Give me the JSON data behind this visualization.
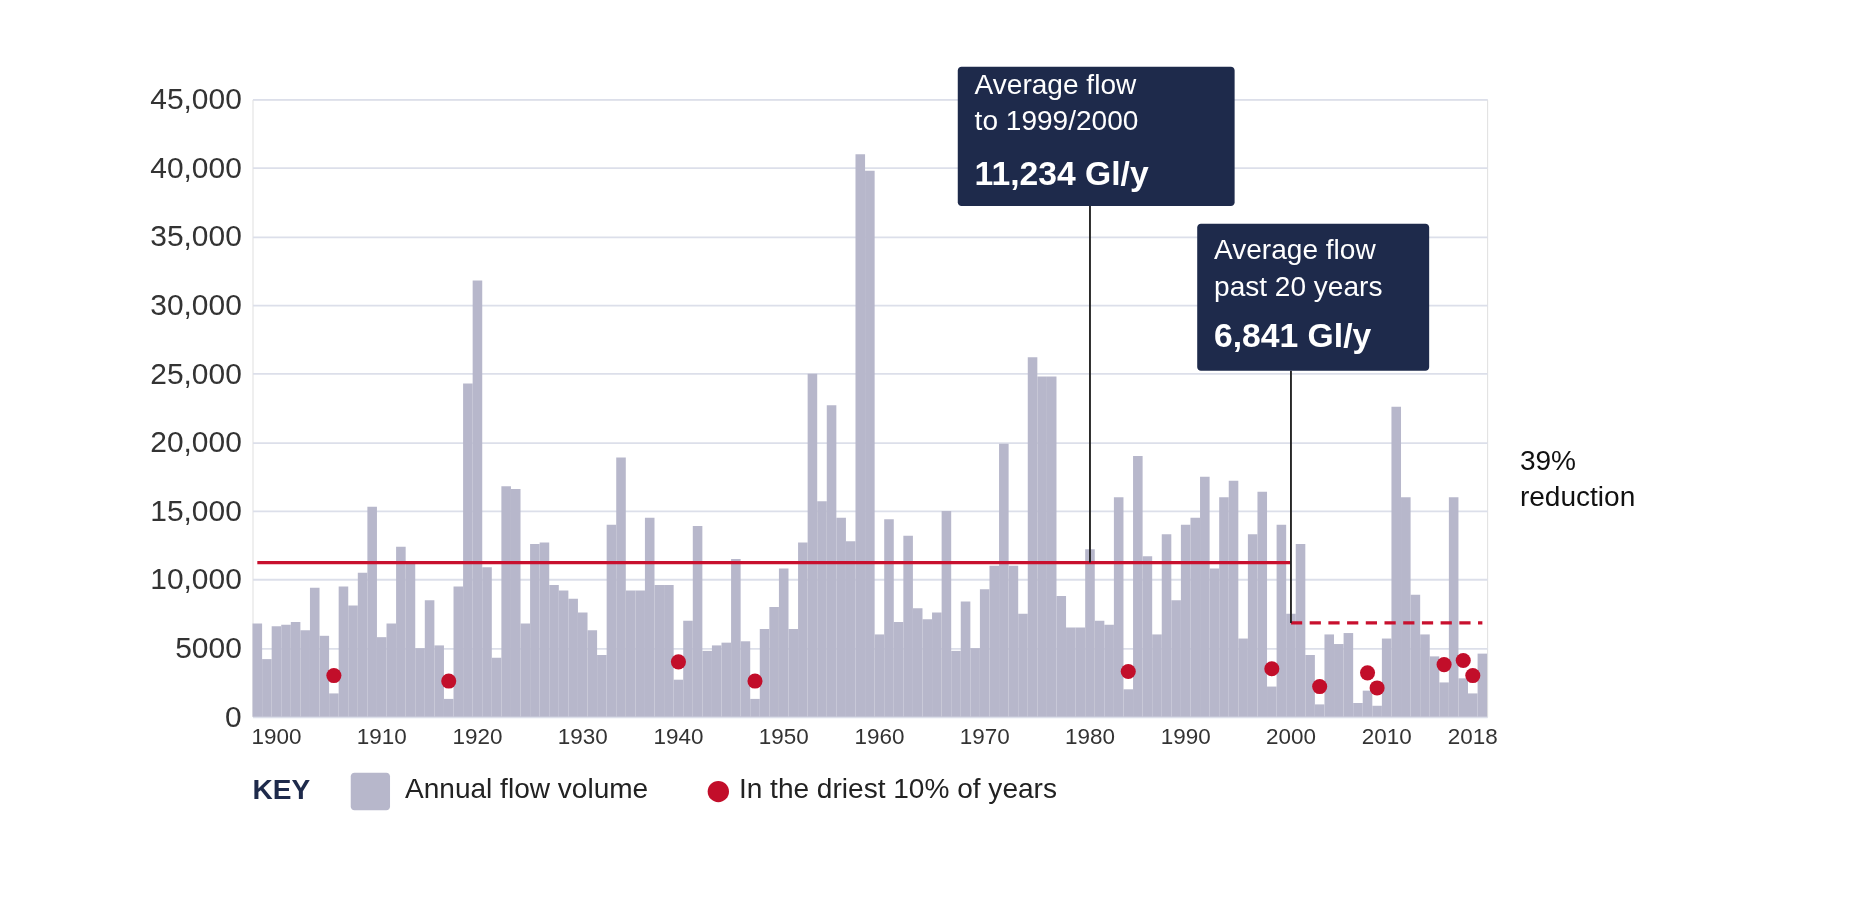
{
  "chart_data": {
    "type": "bar",
    "categories": [
      null,
      null,
      "1900",
      null,
      null,
      null,
      null,
      null,
      null,
      null,
      null,
      null,
      null,
      "1910",
      null,
      null,
      null,
      null,
      null,
      null,
      null,
      null,
      null,
      "1920",
      null,
      null,
      null,
      null,
      null,
      null,
      null,
      null,
      null,
      null,
      "1930",
      null,
      null,
      null,
      null,
      null,
      null,
      null,
      null,
      null,
      "1940",
      null,
      null,
      null,
      null,
      null,
      null,
      null,
      null,
      null,
      null,
      "1950",
      null,
      null,
      null,
      null,
      null,
      null,
      null,
      null,
      null,
      "1960",
      null,
      null,
      null,
      null,
      null,
      null,
      null,
      null,
      null,
      null,
      "1970",
      null,
      null,
      null,
      null,
      null,
      null,
      null,
      null,
      null,
      null,
      "1980",
      null,
      null,
      null,
      null,
      null,
      null,
      null,
      null,
      null,
      "1990",
      null,
      null,
      null,
      null,
      null,
      null,
      null,
      null,
      null,
      null,
      "2000",
      null,
      null,
      null,
      null,
      null,
      null,
      null,
      null,
      null,
      "2010",
      null,
      null,
      null,
      null,
      null,
      null,
      null,
      null,
      "2018",
      null
    ],
    "series": [
      {
        "name": "Annual flow volume",
        "color": "#b7b7cb",
        "values": [
          6800,
          4200,
          6600,
          6700,
          6900,
          6300,
          9400,
          5900,
          1700,
          9500,
          8100,
          10500,
          15300,
          5800,
          6800,
          12400,
          11200,
          5000,
          8500,
          5200,
          1300,
          9500,
          24300,
          31800,
          10900,
          4300,
          16800,
          16600,
          6800,
          12600,
          12700,
          9600,
          9200,
          8600,
          7600,
          6300,
          4500,
          14000,
          18900,
          9200,
          9200,
          14500,
          9600,
          9600,
          2700,
          7000,
          13900,
          4800,
          5200,
          5400,
          11500,
          5500,
          1300,
          6400,
          8000,
          10800,
          6400,
          12700,
          25000,
          15700,
          22700,
          14500,
          12800,
          41000,
          39800,
          6000,
          14400,
          6900,
          13200,
          7900,
          7100,
          7600,
          15000,
          4800,
          8400,
          5000,
          9300,
          11000,
          19900,
          11000,
          7500,
          26200,
          24800,
          24800,
          8800,
          6500,
          6500,
          12200,
          7000,
          6700,
          16000,
          2000,
          19000,
          11700,
          6000,
          13300,
          8500,
          14000,
          14500,
          17500,
          10800,
          16000,
          17200,
          5700,
          13300,
          16400,
          2200,
          14000,
          7500,
          12600,
          4500,
          900,
          6000,
          5300,
          6100,
          1000,
          1900,
          800,
          5700,
          22600,
          16000,
          8900,
          6000,
          4400,
          2500,
          16000,
          2800,
          1700,
          4600
        ]
      },
      {
        "type": "line",
        "line_style": "solid",
        "color": "#c8102e",
        "values": [
          11234,
          11234,
          11234,
          11234,
          11234,
          11234,
          11234,
          11234,
          11234,
          11234,
          11234,
          11234,
          11234,
          11234,
          11234,
          11234,
          11234,
          11234,
          11234,
          11234,
          11234,
          11234,
          11234,
          11234,
          11234,
          11234,
          11234,
          11234,
          11234,
          11234,
          11234,
          11234,
          11234,
          11234,
          11234,
          11234,
          11234,
          11234,
          11234,
          11234,
          11234,
          11234,
          11234,
          11234,
          11234,
          11234,
          11234,
          11234,
          11234,
          11234,
          11234,
          11234,
          11234,
          11234,
          11234,
          11234,
          11234,
          11234,
          11234,
          11234,
          11234,
          11234,
          11234,
          11234,
          11234,
          11234,
          11234,
          11234,
          11234,
          11234,
          11234,
          11234,
          11234,
          11234,
          11234,
          11234,
          11234,
          11234,
          11234,
          11234,
          11234,
          11234,
          11234,
          11234,
          11234,
          11234,
          11234,
          11234,
          11234,
          11234,
          11234,
          11234,
          11234,
          11234,
          11234,
          11234,
          11234,
          11234,
          11234,
          11234,
          11234,
          11234,
          11234,
          11234,
          11234,
          11234,
          11234,
          11234,
          11234,
          null,
          null,
          null,
          null,
          null,
          null,
          null,
          null,
          null,
          null,
          null,
          null,
          null,
          null,
          null,
          null,
          null,
          null,
          null,
          null
        ]
      },
      {
        "type": "line",
        "line_style": "dashed",
        "color": "#c8102e",
        "values": [
          null,
          null,
          null,
          null,
          null,
          null,
          null,
          null,
          null,
          null,
          null,
          null,
          null,
          null,
          null,
          null,
          null,
          null,
          null,
          null,
          null,
          null,
          null,
          null,
          null,
          null,
          null,
          null,
          null,
          null,
          null,
          null,
          null,
          null,
          null,
          null,
          null,
          null,
          null,
          null,
          null,
          null,
          null,
          null,
          null,
          null,
          null,
          null,
          null,
          null,
          null,
          null,
          null,
          null,
          null,
          null,
          null,
          null,
          null,
          null,
          null,
          null,
          null,
          null,
          null,
          null,
          null,
          null,
          null,
          null,
          null,
          null,
          null,
          null,
          null,
          null,
          null,
          null,
          null,
          null,
          null,
          null,
          null,
          null,
          null,
          null,
          null,
          null,
          null,
          null,
          null,
          null,
          null,
          null,
          null,
          null,
          null,
          null,
          null,
          null,
          null,
          null,
          null,
          null,
          null,
          null,
          null,
          null,
          6841,
          6841,
          6841,
          6841,
          6841,
          6841,
          6841,
          6841,
          6841,
          6841,
          6841,
          6841,
          6841,
          6841,
          6841,
          6841,
          6841,
          6841,
          6841,
          6841,
          6841
        ]
      },
      {
        "name": "In the driest 10% of years",
        "type": "scatter",
        "marker": "circle",
        "color": "#c20e2a",
        "values": [
          null,
          null,
          null,
          null,
          null,
          null,
          null,
          null,
          3000,
          null,
          null,
          null,
          null,
          null,
          null,
          null,
          null,
          null,
          null,
          null,
          2600,
          null,
          null,
          null,
          null,
          null,
          null,
          null,
          null,
          null,
          null,
          null,
          null,
          null,
          null,
          null,
          null,
          null,
          null,
          null,
          null,
          null,
          null,
          null,
          4000,
          null,
          null,
          null,
          null,
          null,
          null,
          null,
          2600,
          null,
          null,
          null,
          null,
          null,
          null,
          null,
          null,
          null,
          null,
          null,
          null,
          null,
          null,
          null,
          null,
          null,
          null,
          null,
          null,
          null,
          null,
          null,
          null,
          null,
          null,
          null,
          null,
          null,
          null,
          null,
          null,
          null,
          null,
          null,
          null,
          null,
          null,
          3300,
          null,
          null,
          null,
          null,
          null,
          null,
          null,
          null,
          null,
          null,
          null,
          null,
          null,
          null,
          3500,
          null,
          null,
          null,
          null,
          2200,
          null,
          null,
          null,
          null,
          3200,
          2100,
          null,
          null,
          null,
          null,
          null,
          null,
          3800,
          null,
          4100,
          3000,
          null
        ]
      }
    ],
    "ylim": [
      0,
      45000
    ],
    "yticks": [
      {
        "value": 0,
        "label": "0"
      },
      {
        "value": 5000,
        "label": "5000"
      },
      {
        "value": 10000,
        "label": "10,000"
      },
      {
        "value": 15000,
        "label": "15,000"
      },
      {
        "value": 20000,
        "label": "20,000"
      },
      {
        "value": 25000,
        "label": "25,000"
      },
      {
        "value": 30000,
        "label": "30,000"
      },
      {
        "value": 35000,
        "label": "35,000"
      },
      {
        "value": 40000,
        "label": "40,000"
      },
      {
        "value": 45000,
        "label": "45,000"
      }
    ],
    "grid": "y",
    "legend": "bottom",
    "legend_title": "KEY",
    "annotations": [
      "Average flow\nto 1999/2000",
      {
        "text": "11,234 Gl/y",
        "x": "1980",
        "y": 11234
      },
      "Average flow\npast 20 years",
      {
        "text": "6,841 Gl/y",
        "x": "2000",
        "y": 6841
      },
      "39%\nreduction"
    ]
  }
}
